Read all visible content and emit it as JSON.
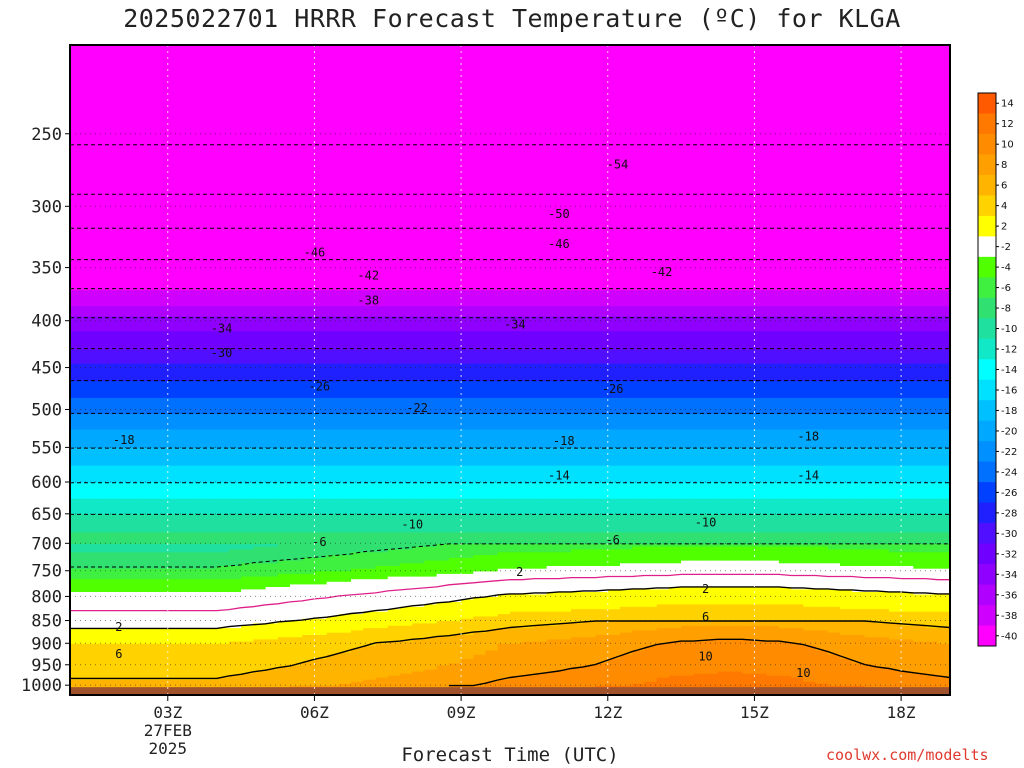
{
  "title": "2025022701 HRRR Forecast Temperature (ºC) for KLGA",
  "watermark": "coolwx.com/modelts",
  "chart_data": {
    "type": "heatmap",
    "title": "2025022701 HRRR Forecast Temperature (ºC) for KLGA",
    "xlabel": "Forecast Time (UTC)",
    "ylabel": "",
    "x_ticks": [
      "03Z",
      "06Z",
      "09Z",
      "12Z",
      "15Z",
      "18Z"
    ],
    "x_tick_date": [
      "27FEB",
      "2025"
    ],
    "x_hours": [
      3,
      6,
      9,
      12,
      15,
      18
    ],
    "xlim": [
      1,
      19
    ],
    "y_ticks": [
      250,
      300,
      350,
      400,
      450,
      500,
      550,
      600,
      650,
      700,
      750,
      800,
      850,
      900,
      950,
      1000
    ],
    "ylim": [
      1025,
      200
    ],
    "y_scale": "log",
    "grid": true,
    "colorbar": {
      "levels": [
        -40,
        -38,
        -36,
        -34,
        -32,
        -30,
        -28,
        -26,
        -24,
        -22,
        -20,
        -18,
        -16,
        -14,
        -12,
        -10,
        -8,
        -6,
        -4,
        -2,
        2,
        4,
        6,
        8,
        10,
        12,
        14
      ],
      "labels": [
        "14",
        "12",
        "10",
        "8",
        "6",
        "4",
        "2",
        "-2",
        "-4",
        "-6",
        "-8",
        "-10",
        "-12",
        "-14",
        "-16",
        "-18",
        "-20",
        "-22",
        "-24",
        "-26",
        "-28",
        "-30",
        "-32",
        "-34",
        "-36",
        "-38",
        "-40"
      ],
      "colors": [
        "#ff5a00",
        "#ff7800",
        "#ff8c00",
        "#ffa000",
        "#ffb400",
        "#ffd200",
        "#ffff00",
        "#ffffff",
        "#50ff00",
        "#40f040",
        "#30e070",
        "#20e0a0",
        "#10e8c8",
        "#00ffff",
        "#00e0ff",
        "#00c0ff",
        "#00a8ff",
        "#0090ff",
        "#0070ff",
        "#0040ff",
        "#2020ff",
        "#5010ff",
        "#7000ff",
        "#9000ff",
        "#b000ff",
        "#d000ff",
        "#ff00ff"
      ]
    },
    "contour_labels": [
      "-54",
      "-50",
      "-46",
      "-46",
      "-42",
      "-42",
      "-38",
      "-34",
      "-34",
      "-30",
      "-26",
      "-26",
      "-22",
      "-18",
      "-18",
      "-18",
      "-14",
      "-14",
      "-10",
      "-10",
      "-6",
      "-6",
      "2",
      "2",
      "2",
      "6",
      "6",
      "10",
      "10"
    ],
    "contour_label_points": [
      {
        "text": "-54",
        "hour": 12.2,
        "p": 270
      },
      {
        "text": "-50",
        "hour": 11.0,
        "p": 306
      },
      {
        "text": "-46",
        "hour": 6.0,
        "p": 337
      },
      {
        "text": "-46",
        "hour": 11.0,
        "p": 330
      },
      {
        "text": "-42",
        "hour": 7.1,
        "p": 357
      },
      {
        "text": "-42",
        "hour": 13.1,
        "p": 354
      },
      {
        "text": "-38",
        "hour": 7.1,
        "p": 380
      },
      {
        "text": "-34",
        "hour": 4.1,
        "p": 408
      },
      {
        "text": "-34",
        "hour": 10.1,
        "p": 404
      },
      {
        "text": "-30",
        "hour": 4.1,
        "p": 434
      },
      {
        "text": "-26",
        "hour": 6.1,
        "p": 472
      },
      {
        "text": "-26",
        "hour": 12.1,
        "p": 475
      },
      {
        "text": "-22",
        "hour": 8.1,
        "p": 498
      },
      {
        "text": "-18",
        "hour": 2.1,
        "p": 540
      },
      {
        "text": "-18",
        "hour": 11.1,
        "p": 541
      },
      {
        "text": "-18",
        "hour": 16.1,
        "p": 535
      },
      {
        "text": "-14",
        "hour": 11.0,
        "p": 590
      },
      {
        "text": "-14",
        "hour": 16.1,
        "p": 590
      },
      {
        "text": "-10",
        "hour": 8.0,
        "p": 668
      },
      {
        "text": "-10",
        "hour": 14.0,
        "p": 664
      },
      {
        "text": "-6",
        "hour": 6.1,
        "p": 698
      },
      {
        "text": "-6",
        "hour": 12.1,
        "p": 694
      },
      {
        "text": "2",
        "hour": 2.0,
        "p": 864
      },
      {
        "text": "2",
        "hour": 10.2,
        "p": 752
      },
      {
        "text": "2",
        "hour": 14.0,
        "p": 785
      },
      {
        "text": "6",
        "hour": 2.0,
        "p": 925
      },
      {
        "text": "6",
        "hour": 14.0,
        "p": 842
      },
      {
        "text": "10",
        "hour": 14.0,
        "p": 930
      },
      {
        "text": "10",
        "hour": 16.0,
        "p": 970
      }
    ]
  }
}
